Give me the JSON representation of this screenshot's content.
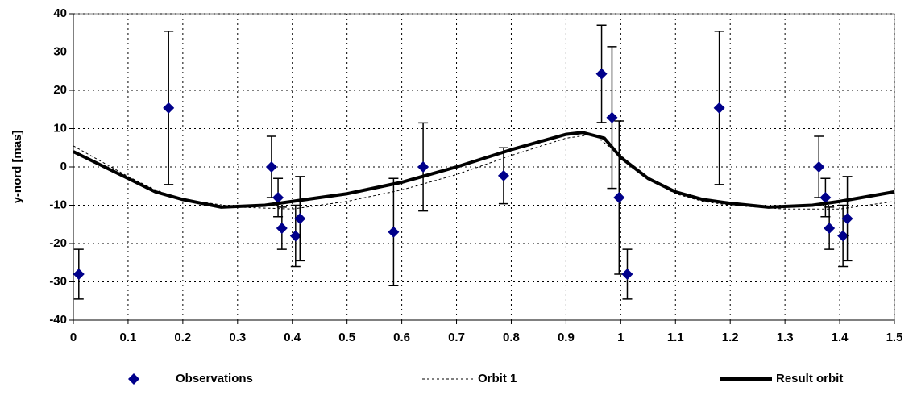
{
  "chart_data": {
    "type": "scatter",
    "ylabel": "y-nord [mas]",
    "xlim": [
      0,
      1.5
    ],
    "xticks": [
      0,
      0.1,
      0.2,
      0.3,
      0.4,
      0.5,
      0.6,
      0.7,
      0.8,
      0.9,
      1,
      1.1,
      1.2,
      1.3,
      1.4,
      1.5
    ],
    "ylim": [
      -40,
      40
    ],
    "yticks": [
      -40,
      -30,
      -20,
      -10,
      0,
      10,
      20,
      30,
      40
    ],
    "grid": true,
    "legend": "bottom",
    "series": [
      {
        "name": "Observations",
        "color": "#00008b",
        "marker": "diamond",
        "x": [
          0.01,
          0.174,
          0.362,
          0.374,
          0.381,
          0.406,
          0.414,
          0.585,
          0.639,
          0.786,
          0.965,
          0.984,
          0.997,
          1.012,
          1.18,
          1.362,
          1.374,
          1.381,
          1.406,
          1.414
        ],
        "values": [
          -28,
          15.4,
          0,
          -8,
          -16,
          -18,
          -13.5,
          -17,
          0,
          -2.3,
          24.3,
          12.9,
          -8,
          -28,
          15.4,
          0,
          -8,
          -16,
          -18,
          -13.5
        ],
        "errors": [
          6.5,
          20,
          8,
          5,
          5.5,
          8,
          11,
          14,
          11.5,
          7.3,
          12.7,
          18.5,
          20,
          6.5,
          20,
          8,
          5,
          5.5,
          8,
          11
        ]
      },
      {
        "name": "Orbit 1",
        "color": "#000000",
        "line": "dashed",
        "x": [
          0,
          0.05,
          0.1,
          0.15,
          0.2,
          0.3,
          0.4,
          0.5,
          0.6,
          0.7,
          0.8,
          0.9,
          0.95,
          1.0,
          1.05,
          1.1,
          1.15,
          1.2,
          1.3,
          1.4,
          1.5
        ],
        "values": [
          5.5,
          1.5,
          -2.5,
          -6,
          -8.5,
          -10.5,
          -11,
          -9,
          -6,
          -2,
          3,
          7.5,
          8.5,
          3,
          -3,
          -7,
          -9,
          -10,
          -11,
          -11,
          -9
        ]
      },
      {
        "name": "Result orbit",
        "color": "#000000",
        "line": "solid",
        "x": [
          0,
          0.05,
          0.1,
          0.15,
          0.2,
          0.27,
          0.35,
          0.4,
          0.5,
          0.6,
          0.7,
          0.8,
          0.9,
          0.93,
          0.97,
          1.0,
          1.05,
          1.1,
          1.15,
          1.2,
          1.27,
          1.35,
          1.4,
          1.5
        ],
        "values": [
          4,
          0.5,
          -3,
          -6.5,
          -8.5,
          -10.5,
          -10,
          -9,
          -7,
          -4,
          0,
          4.5,
          8.5,
          9,
          7.5,
          2.5,
          -3,
          -6.5,
          -8.5,
          -9.5,
          -10.5,
          -10,
          -9,
          -6.5
        ]
      }
    ]
  }
}
